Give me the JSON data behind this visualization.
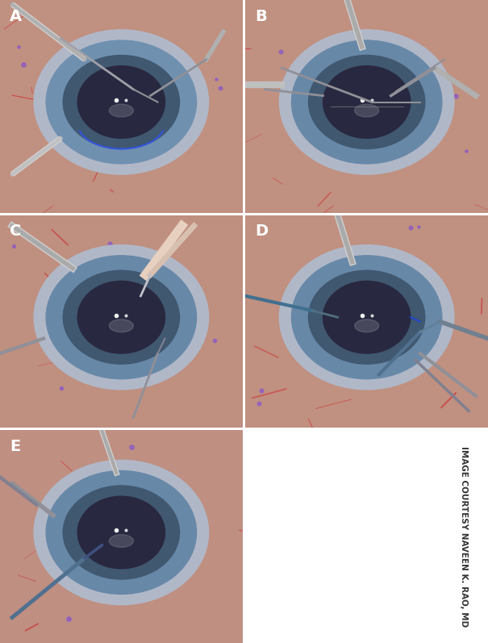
{
  "figure_width": 6.05,
  "figure_height": 7.97,
  "dpi": 100,
  "background_color": "#ffffff",
  "border_color": "#cccccc",
  "panel_labels": [
    "A",
    "B",
    "C",
    "D",
    "E"
  ],
  "label_fontsize": 14,
  "label_color": "#ffffff",
  "credit_text": "IMAGE COURTESY NAVEEN K. RAO, MD",
  "credit_fontsize": 7.5,
  "credit_color": "#333333",
  "panel_bg": {
    "A": "#c09080",
    "B": "#c09080",
    "C": "#bf8f80",
    "D": "#c09080",
    "E": "#bf8f82"
  },
  "iris_colors": {
    "A": "#7090b0",
    "B": "#6888a8",
    "C": "#6888a8",
    "D": "#6888a8",
    "E": "#6888a8"
  },
  "iris_outer_color": "#b0b8c8",
  "iris_inner_color": "#405870",
  "pupil_color": "#282840",
  "vessel_color": "#cc3333",
  "mark_color": "#8855cc",
  "highlight_color": "#ffffff",
  "instrument_color_light": "#d0d0d0",
  "instrument_color_mid": "#a0a0a8",
  "instrument_color_dark": "#909098",
  "blue_haptic_color": "#3355dd",
  "teal_instrument_color": "#507090"
}
